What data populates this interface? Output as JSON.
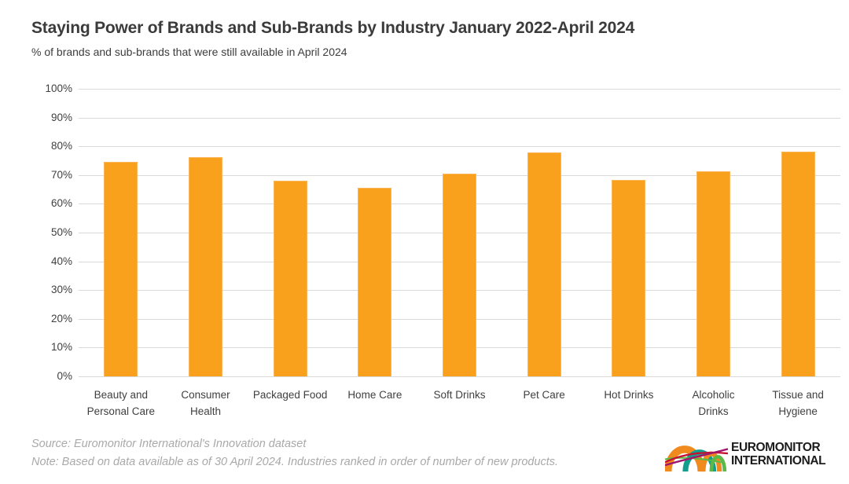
{
  "header": {
    "title": "Staying Power of Brands and Sub-Brands by Industry January 2022-April 2024",
    "subtitle": "% of brands and sub-brands that were still available in April 2024"
  },
  "chart_data": {
    "type": "bar",
    "title": "Staying Power of Brands and Sub-Brands by Industry January 2022-April 2024",
    "subtitle_ylabel": "% of brands and sub-brands that were still available in April 2024",
    "categories": [
      "Beauty and Personal Care",
      "Consumer Health",
      "Packaged Food",
      "Home Care",
      "Soft Drinks",
      "Pet Care",
      "Hot Drinks",
      "Alcoholic Drinks",
      "Tissue and Hygiene"
    ],
    "category_lines": [
      [
        "Beauty and",
        "Personal Care"
      ],
      [
        "Consumer",
        "Health"
      ],
      [
        "Packaged Food"
      ],
      [
        "Home Care"
      ],
      [
        "Soft Drinks"
      ],
      [
        "Pet Care"
      ],
      [
        "Hot Drinks"
      ],
      [
        "Alcoholic",
        "Drinks"
      ],
      [
        "Tissue and",
        "Hygiene"
      ]
    ],
    "values": [
      74.7,
      76.2,
      67.9,
      65.6,
      70.5,
      78.0,
      68.2,
      71.3,
      78.1
    ],
    "unit": "%",
    "ylim": [
      0,
      100
    ],
    "ytick_step": 10,
    "ytick_labels": [
      "0%",
      "10%",
      "20%",
      "30%",
      "40%",
      "50%",
      "60%",
      "70%",
      "80%",
      "90%",
      "100%"
    ],
    "grid": true,
    "legend": "none",
    "bar_color": "#f9a01c",
    "gridline_color": "#d9d9d9"
  },
  "footer": {
    "source": "Source: Euromonitor International's Innovation dataset",
    "note": "Note: Based on data available as of 30 April 2024. Industries ranked in order of number of new products."
  },
  "logo": {
    "line1": "EUROMONITOR",
    "line2": "INTERNATIONAL",
    "colors": {
      "orange": "#f18a1e",
      "teal": "#129e8f",
      "green": "#5cb947",
      "red": "#c51230",
      "purple": "#a0156e"
    }
  }
}
